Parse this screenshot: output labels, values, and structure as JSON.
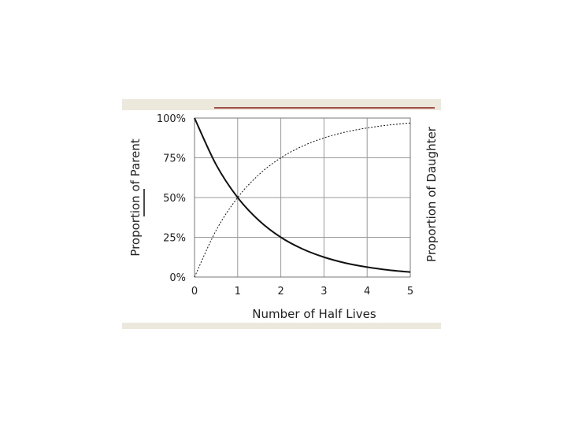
{
  "chart_data": {
    "type": "line",
    "title": "",
    "xlabel": "Number of Half Lives",
    "ylabel": "Proportion of Parent",
    "ylabel_right": "Proportion of Daughter",
    "xlim": [
      0,
      5
    ],
    "ylim": [
      0,
      100
    ],
    "x_ticks": [
      "0",
      "1",
      "2",
      "3",
      "4",
      "5"
    ],
    "y_ticks": [
      "0%",
      "25%",
      "50%",
      "75%",
      "100%"
    ],
    "grid": true,
    "legend": "none",
    "x": [
      0,
      0.5,
      1,
      1.5,
      2,
      2.5,
      3,
      3.5,
      4,
      4.5,
      5
    ],
    "series": [
      {
        "values": [
          100,
          70.7,
          50,
          35.4,
          25,
          17.7,
          12.5,
          8.8,
          6.25,
          4.4,
          3.1
        ],
        "style": "solid"
      },
      {
        "values": [
          0,
          29.3,
          50,
          64.6,
          75,
          82.3,
          87.5,
          91.2,
          93.75,
          95.6,
          96.9
        ],
        "style": "dotted"
      }
    ],
    "colors": {
      "line": "#111111",
      "grid": "#999999",
      "band": "#ece9dc",
      "accent_rule": "#8b1a1a"
    }
  }
}
